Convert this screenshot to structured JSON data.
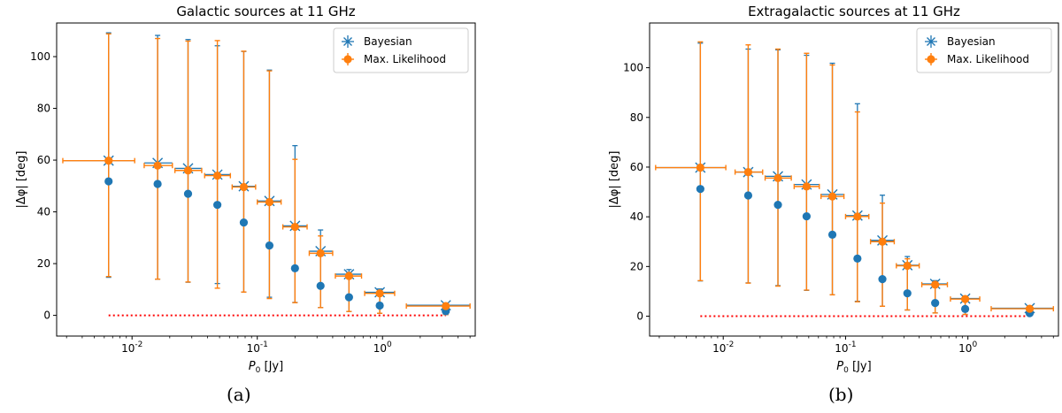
{
  "colors": {
    "bayesian": "#1f77b4",
    "ml": "#ff7f0e",
    "reference_line": "#ff0000",
    "axes": "#000000"
  },
  "shared_axes": {
    "xlabel": "P0 [Jy]",
    "ylabel": "|Δφ| [deg]",
    "x_scale": "log",
    "xlim": [
      0.0025,
      5.5
    ],
    "x_tick_labels": [
      "10^-2",
      "10^-1",
      "10^0"
    ],
    "y_ticks": [
      0,
      20,
      40,
      60,
      80,
      100
    ]
  },
  "legend": {
    "placement": "top-right",
    "entries": [
      "Bayesian",
      "Max. Likelihood"
    ]
  },
  "captions": [
    "(a)",
    "(b)"
  ],
  "chart_data": [
    {
      "type": "scatter",
      "title": "Galactic sources at 11 GHz",
      "caption": "(a)",
      "xlabel": "P0 [Jy]",
      "ylabel": "|Δφ| [deg]",
      "ylim": [
        -8,
        113
      ],
      "grid": false,
      "reference_line": {
        "y": 0,
        "x_range": [
          0.0065,
          3.2
        ],
        "style": "dotted"
      },
      "series": [
        {
          "name": "Bayesian",
          "marker": "x-with-errorbars",
          "points": [
            {
              "x": 0.0065,
              "y": 59.8,
              "err_low": 45.1,
              "err_high": 49.4,
              "x_low": 0.0028,
              "x_high": 0.0105
            },
            {
              "x": 0.016,
              "y": 58.9,
              "err_low": 44.9,
              "err_high": 49.3,
              "x_low": 0.0125,
              "x_high": 0.021
            },
            {
              "x": 0.028,
              "y": 56.8,
              "err_low": 44.0,
              "err_high": 49.8,
              "x_low": 0.022,
              "x_high": 0.036
            },
            {
              "x": 0.048,
              "y": 54.4,
              "err_low": 42.1,
              "err_high": 49.8,
              "x_low": 0.038,
              "x_high": 0.061
            },
            {
              "x": 0.078,
              "y": 49.9,
              "err_low": 40.9,
              "err_high": 52.1,
              "x_low": 0.063,
              "x_high": 0.097
            },
            {
              "x": 0.125,
              "y": 44.2,
              "err_low": 37.2,
              "err_high": 50.6,
              "x_low": 0.1,
              "x_high": 0.155
            },
            {
              "x": 0.2,
              "y": 34.6,
              "err_low": 29.6,
              "err_high": 31.0,
              "x_low": 0.16,
              "x_high": 0.25
            },
            {
              "x": 0.32,
              "y": 24.8,
              "err_low": 21.8,
              "err_high": 8.2,
              "x_low": 0.26,
              "x_high": 0.4
            },
            {
              "x": 0.54,
              "y": 15.9,
              "err_low": 14.4,
              "err_high": 1.8,
              "x_low": 0.42,
              "x_high": 0.68
            },
            {
              "x": 0.95,
              "y": 8.9,
              "err_low": 8.1,
              "err_high": 1.3,
              "x_low": 0.72,
              "x_high": 1.25
            },
            {
              "x": 3.2,
              "y": 3.9,
              "err_low": 3.6,
              "err_high": 0.9,
              "x_low": 1.55,
              "x_high": 5.0
            }
          ]
        },
        {
          "name": "Max. Likelihood",
          "marker": "filled-circle-with-errorbars",
          "points": [
            {
              "x": 0.0065,
              "y": 59.8,
              "err_low": 44.8,
              "err_high": 49.0,
              "x_low": 0.0028,
              "x_high": 0.0105
            },
            {
              "x": 0.016,
              "y": 57.9,
              "err_low": 43.9,
              "err_high": 49.1,
              "x_low": 0.0125,
              "x_high": 0.021
            },
            {
              "x": 0.028,
              "y": 56.0,
              "err_low": 43.1,
              "err_high": 50.0,
              "x_low": 0.022,
              "x_high": 0.036
            },
            {
              "x": 0.048,
              "y": 54.0,
              "err_low": 43.5,
              "err_high": 52.2,
              "x_low": 0.038,
              "x_high": 0.061
            },
            {
              "x": 0.078,
              "y": 49.6,
              "err_low": 40.6,
              "err_high": 52.5,
              "x_low": 0.063,
              "x_high": 0.097
            },
            {
              "x": 0.125,
              "y": 43.8,
              "err_low": 37.3,
              "err_high": 50.7,
              "x_low": 0.1,
              "x_high": 0.155
            },
            {
              "x": 0.2,
              "y": 34.2,
              "err_low": 29.3,
              "err_high": 26.1,
              "x_low": 0.16,
              "x_high": 0.25
            },
            {
              "x": 0.32,
              "y": 24.0,
              "err_low": 21.0,
              "err_high": 6.7,
              "x_low": 0.26,
              "x_high": 0.4
            },
            {
              "x": 0.54,
              "y": 15.2,
              "err_low": 13.7,
              "err_high": 1.4,
              "x_low": 0.42,
              "x_high": 0.68
            },
            {
              "x": 0.95,
              "y": 8.5,
              "err_low": 7.7,
              "err_high": 1.1,
              "x_low": 0.72,
              "x_high": 1.25
            },
            {
              "x": 3.2,
              "y": 3.6,
              "err_low": 3.3,
              "err_high": 0.7,
              "x_low": 1.55,
              "x_high": 5.0
            }
          ]
        },
        {
          "name": "",
          "marker": "circle",
          "points": [
            {
              "x": 0.0065,
              "y": 51.8
            },
            {
              "x": 0.016,
              "y": 50.8
            },
            {
              "x": 0.028,
              "y": 47.0
            },
            {
              "x": 0.048,
              "y": 42.7
            },
            {
              "x": 0.078,
              "y": 35.9
            },
            {
              "x": 0.125,
              "y": 27.0
            },
            {
              "x": 0.2,
              "y": 18.2
            },
            {
              "x": 0.32,
              "y": 11.4
            },
            {
              "x": 0.54,
              "y": 7.0
            },
            {
              "x": 0.95,
              "y": 3.8
            },
            {
              "x": 3.2,
              "y": 1.6
            }
          ]
        }
      ]
    },
    {
      "type": "scatter",
      "title": "Extragalactic sources at 11 GHz",
      "caption": "(b)",
      "xlabel": "P0 [Jy]",
      "ylabel": "|Δφ| [deg]",
      "ylim": [
        -8,
        118
      ],
      "grid": false,
      "reference_line": {
        "y": 0,
        "x_range": [
          0.0065,
          3.2
        ],
        "style": "dotted"
      },
      "series": [
        {
          "name": "Bayesian",
          "marker": "x-with-errorbars",
          "points": [
            {
              "x": 0.0065,
              "y": 59.8,
              "err_low": 45.6,
              "err_high": 50.1,
              "x_low": 0.0028,
              "x_high": 0.0105
            },
            {
              "x": 0.016,
              "y": 58.0,
              "err_low": 44.6,
              "err_high": 49.5,
              "x_low": 0.0125,
              "x_high": 0.021
            },
            {
              "x": 0.028,
              "y": 56.3,
              "err_low": 44.0,
              "err_high": 50.9,
              "x_low": 0.022,
              "x_high": 0.036
            },
            {
              "x": 0.048,
              "y": 53.0,
              "err_low": 42.6,
              "err_high": 52.0,
              "x_low": 0.038,
              "x_high": 0.061
            },
            {
              "x": 0.078,
              "y": 49.0,
              "err_low": 40.4,
              "err_high": 52.8,
              "x_low": 0.063,
              "x_high": 0.097
            },
            {
              "x": 0.125,
              "y": 40.5,
              "err_low": 34.5,
              "err_high": 45.0,
              "x_low": 0.1,
              "x_high": 0.155
            },
            {
              "x": 0.2,
              "y": 30.5,
              "err_low": 26.5,
              "err_high": 18.2,
              "x_low": 0.16,
              "x_high": 0.25
            },
            {
              "x": 0.32,
              "y": 20.5,
              "err_low": 18.0,
              "err_high": 3.5,
              "x_low": 0.26,
              "x_high": 0.4
            },
            {
              "x": 0.54,
              "y": 13.0,
              "err_low": 11.7,
              "err_high": 1.3,
              "x_low": 0.42,
              "x_high": 0.68
            },
            {
              "x": 0.95,
              "y": 7.1,
              "err_low": 6.4,
              "err_high": 1.0,
              "x_low": 0.72,
              "x_high": 1.25
            },
            {
              "x": 3.2,
              "y": 3.2,
              "err_low": 2.9,
              "err_high": 0.7,
              "x_low": 1.55,
              "x_high": 5.0
            }
          ]
        },
        {
          "name": "Max. Likelihood",
          "marker": "filled-circle-with-errorbars",
          "points": [
            {
              "x": 0.0065,
              "y": 59.8,
              "err_low": 45.5,
              "err_high": 50.6,
              "x_low": 0.0028,
              "x_high": 0.0105
            },
            {
              "x": 0.016,
              "y": 58.0,
              "err_low": 44.7,
              "err_high": 51.2,
              "x_low": 0.0125,
              "x_high": 0.021
            },
            {
              "x": 0.028,
              "y": 55.6,
              "err_low": 43.5,
              "err_high": 51.9,
              "x_low": 0.022,
              "x_high": 0.036
            },
            {
              "x": 0.048,
              "y": 52.2,
              "err_low": 41.7,
              "err_high": 53.6,
              "x_low": 0.038,
              "x_high": 0.061
            },
            {
              "x": 0.078,
              "y": 48.2,
              "err_low": 39.6,
              "err_high": 52.9,
              "x_low": 0.063,
              "x_high": 0.097
            },
            {
              "x": 0.125,
              "y": 40.1,
              "err_low": 34.3,
              "err_high": 42.1,
              "x_low": 0.1,
              "x_high": 0.155
            },
            {
              "x": 0.2,
              "y": 30.0,
              "err_low": 26.0,
              "err_high": 15.5,
              "x_low": 0.16,
              "x_high": 0.25
            },
            {
              "x": 0.32,
              "y": 20.3,
              "err_low": 17.8,
              "err_high": 2.8,
              "x_low": 0.26,
              "x_high": 0.4
            },
            {
              "x": 0.54,
              "y": 12.7,
              "err_low": 11.4,
              "err_high": 1.0,
              "x_low": 0.42,
              "x_high": 0.68
            },
            {
              "x": 0.95,
              "y": 6.9,
              "err_low": 6.2,
              "err_high": 0.8,
              "x_low": 0.72,
              "x_high": 1.25
            },
            {
              "x": 3.2,
              "y": 3.0,
              "err_low": 2.7,
              "err_high": 0.5,
              "x_low": 1.55,
              "x_high": 5.0
            }
          ]
        },
        {
          "name": "",
          "marker": "circle",
          "points": [
            {
              "x": 0.0065,
              "y": 51.2
            },
            {
              "x": 0.016,
              "y": 48.6
            },
            {
              "x": 0.028,
              "y": 44.8
            },
            {
              "x": 0.048,
              "y": 40.2
            },
            {
              "x": 0.078,
              "y": 32.8
            },
            {
              "x": 0.125,
              "y": 23.2
            },
            {
              "x": 0.2,
              "y": 14.9
            },
            {
              "x": 0.32,
              "y": 9.2
            },
            {
              "x": 0.54,
              "y": 5.3
            },
            {
              "x": 0.95,
              "y": 2.9
            },
            {
              "x": 3.2,
              "y": 1.2
            }
          ]
        }
      ]
    }
  ]
}
